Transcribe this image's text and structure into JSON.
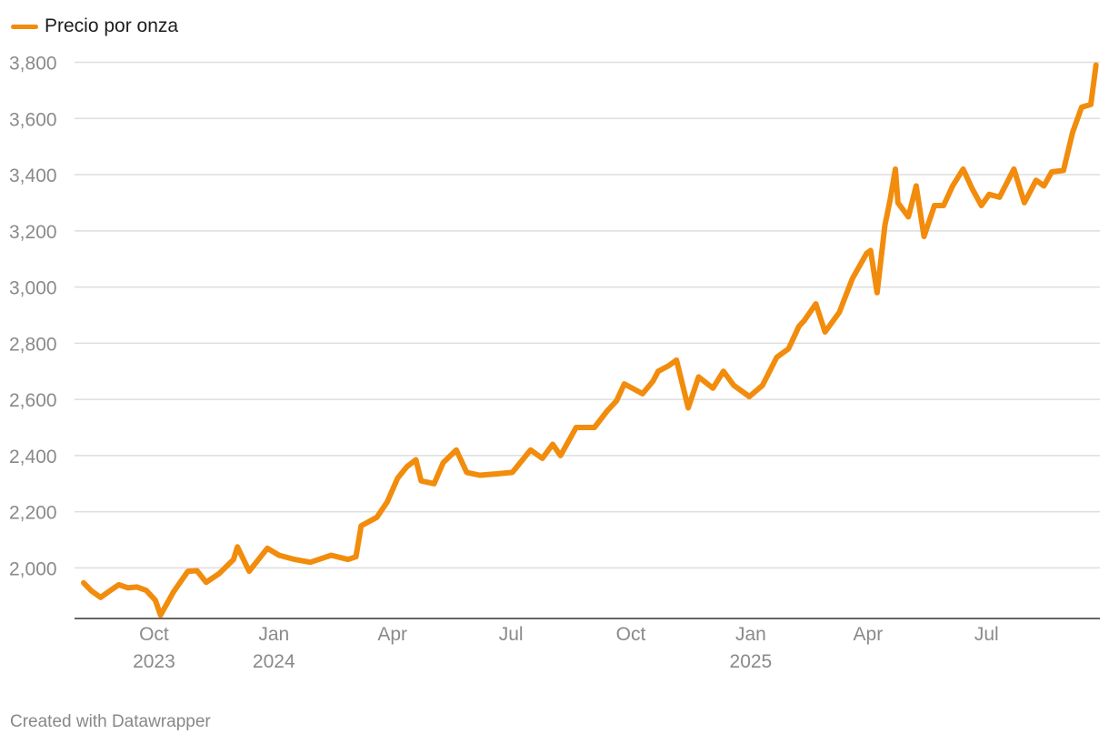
{
  "colors": {
    "series": "#f28c0c",
    "grid": "#dedede",
    "axis": "#333333",
    "tick_text": "#8a8a8a"
  },
  "legend": {
    "label": "Precio por onza"
  },
  "credit": "Created with Datawrapper",
  "chart_data": {
    "type": "line",
    "title": "",
    "xlabel": "",
    "ylabel": "",
    "ylim": [
      1820,
      3860
    ],
    "xlim": [
      "2023-08-01",
      "2025-09-26"
    ],
    "grid": true,
    "legend_position": "top-left",
    "y_ticks": [
      {
        "value": 2000,
        "label": "2,000"
      },
      {
        "value": 2200,
        "label": "2,200"
      },
      {
        "value": 2400,
        "label": "2,400"
      },
      {
        "value": 2600,
        "label": "2,600"
      },
      {
        "value": 2800,
        "label": "2,800"
      },
      {
        "value": 3000,
        "label": "3,000"
      },
      {
        "value": 3200,
        "label": "3,200"
      },
      {
        "value": 3400,
        "label": "3,400"
      },
      {
        "value": 3600,
        "label": "3,600"
      },
      {
        "value": 3800,
        "label": "3,800"
      }
    ],
    "x_ticks": [
      {
        "date": "2023-10-01",
        "label": "Oct",
        "year": "2023"
      },
      {
        "date": "2024-01-01",
        "label": "Jan",
        "year": "2024"
      },
      {
        "date": "2024-04-01",
        "label": "Apr",
        "year": ""
      },
      {
        "date": "2024-07-01",
        "label": "Jul",
        "year": ""
      },
      {
        "date": "2024-10-01",
        "label": "Oct",
        "year": ""
      },
      {
        "date": "2025-01-01",
        "label": "Jan",
        "year": "2025"
      },
      {
        "date": "2025-04-01",
        "label": "Apr",
        "year": ""
      },
      {
        "date": "2025-07-01",
        "label": "Jul",
        "year": ""
      }
    ],
    "series": [
      {
        "name": "Precio por onza",
        "x": [
          "2023-08-08",
          "2023-08-14",
          "2023-08-21",
          "2023-08-28",
          "2023-09-04",
          "2023-09-11",
          "2023-09-18",
          "2023-09-25",
          "2023-10-02",
          "2023-10-06",
          "2023-10-16",
          "2023-10-27",
          "2023-11-03",
          "2023-11-10",
          "2023-11-20",
          "2023-12-01",
          "2023-12-04",
          "2023-12-13",
          "2023-12-27",
          "2024-01-05",
          "2024-01-17",
          "2024-01-29",
          "2024-02-14",
          "2024-02-27",
          "2024-03-04",
          "2024-03-08",
          "2024-03-20",
          "2024-03-28",
          "2024-04-05",
          "2024-04-12",
          "2024-04-19",
          "2024-04-23",
          "2024-05-03",
          "2024-05-10",
          "2024-05-20",
          "2024-05-28",
          "2024-06-07",
          "2024-06-20",
          "2024-07-02",
          "2024-07-16",
          "2024-07-25",
          "2024-08-02",
          "2024-08-08",
          "2024-08-20",
          "2024-09-03",
          "2024-09-13",
          "2024-09-20",
          "2024-09-26",
          "2024-10-10",
          "2024-10-18",
          "2024-10-22",
          "2024-10-30",
          "2024-11-05",
          "2024-11-14",
          "2024-11-22",
          "2024-12-03",
          "2024-12-11",
          "2024-12-19",
          "2024-12-31",
          "2025-01-10",
          "2025-01-21",
          "2025-01-30",
          "2025-02-07",
          "2025-02-11",
          "2025-02-20",
          "2025-02-27",
          "2025-03-10",
          "2025-03-20",
          "2025-03-31",
          "2025-04-03",
          "2025-04-08",
          "2025-04-14",
          "2025-04-18",
          "2025-04-22",
          "2025-04-24",
          "2025-05-02",
          "2025-05-08",
          "2025-05-14",
          "2025-05-22",
          "2025-05-29",
          "2025-06-05",
          "2025-06-13",
          "2025-06-20",
          "2025-06-27",
          "2025-07-03",
          "2025-07-11",
          "2025-07-22",
          "2025-07-30",
          "2025-08-08",
          "2025-08-14",
          "2025-08-20",
          "2025-08-29",
          "2025-09-05",
          "2025-09-12",
          "2025-09-19",
          "2025-09-23"
        ],
        "values": [
          1947,
          1918,
          1895,
          1918,
          1940,
          1929,
          1932,
          1920,
          1885,
          1832,
          1915,
          1988,
          1990,
          1949,
          1980,
          2030,
          2075,
          1988,
          2070,
          2045,
          2030,
          2020,
          2045,
          2030,
          2040,
          2150,
          2180,
          2235,
          2320,
          2360,
          2385,
          2310,
          2300,
          2375,
          2420,
          2340,
          2330,
          2335,
          2340,
          2420,
          2390,
          2440,
          2400,
          2500,
          2500,
          2560,
          2595,
          2655,
          2620,
          2665,
          2700,
          2720,
          2740,
          2570,
          2680,
          2640,
          2700,
          2650,
          2610,
          2650,
          2750,
          2780,
          2860,
          2880,
          2940,
          2840,
          2910,
          3030,
          3120,
          3130,
          2980,
          3220,
          3310,
          3420,
          3300,
          3250,
          3360,
          3180,
          3290,
          3290,
          3360,
          3420,
          3350,
          3290,
          3330,
          3320,
          3420,
          3300,
          3380,
          3360,
          3410,
          3415,
          3550,
          3640,
          3650,
          3790
        ]
      }
    ]
  }
}
